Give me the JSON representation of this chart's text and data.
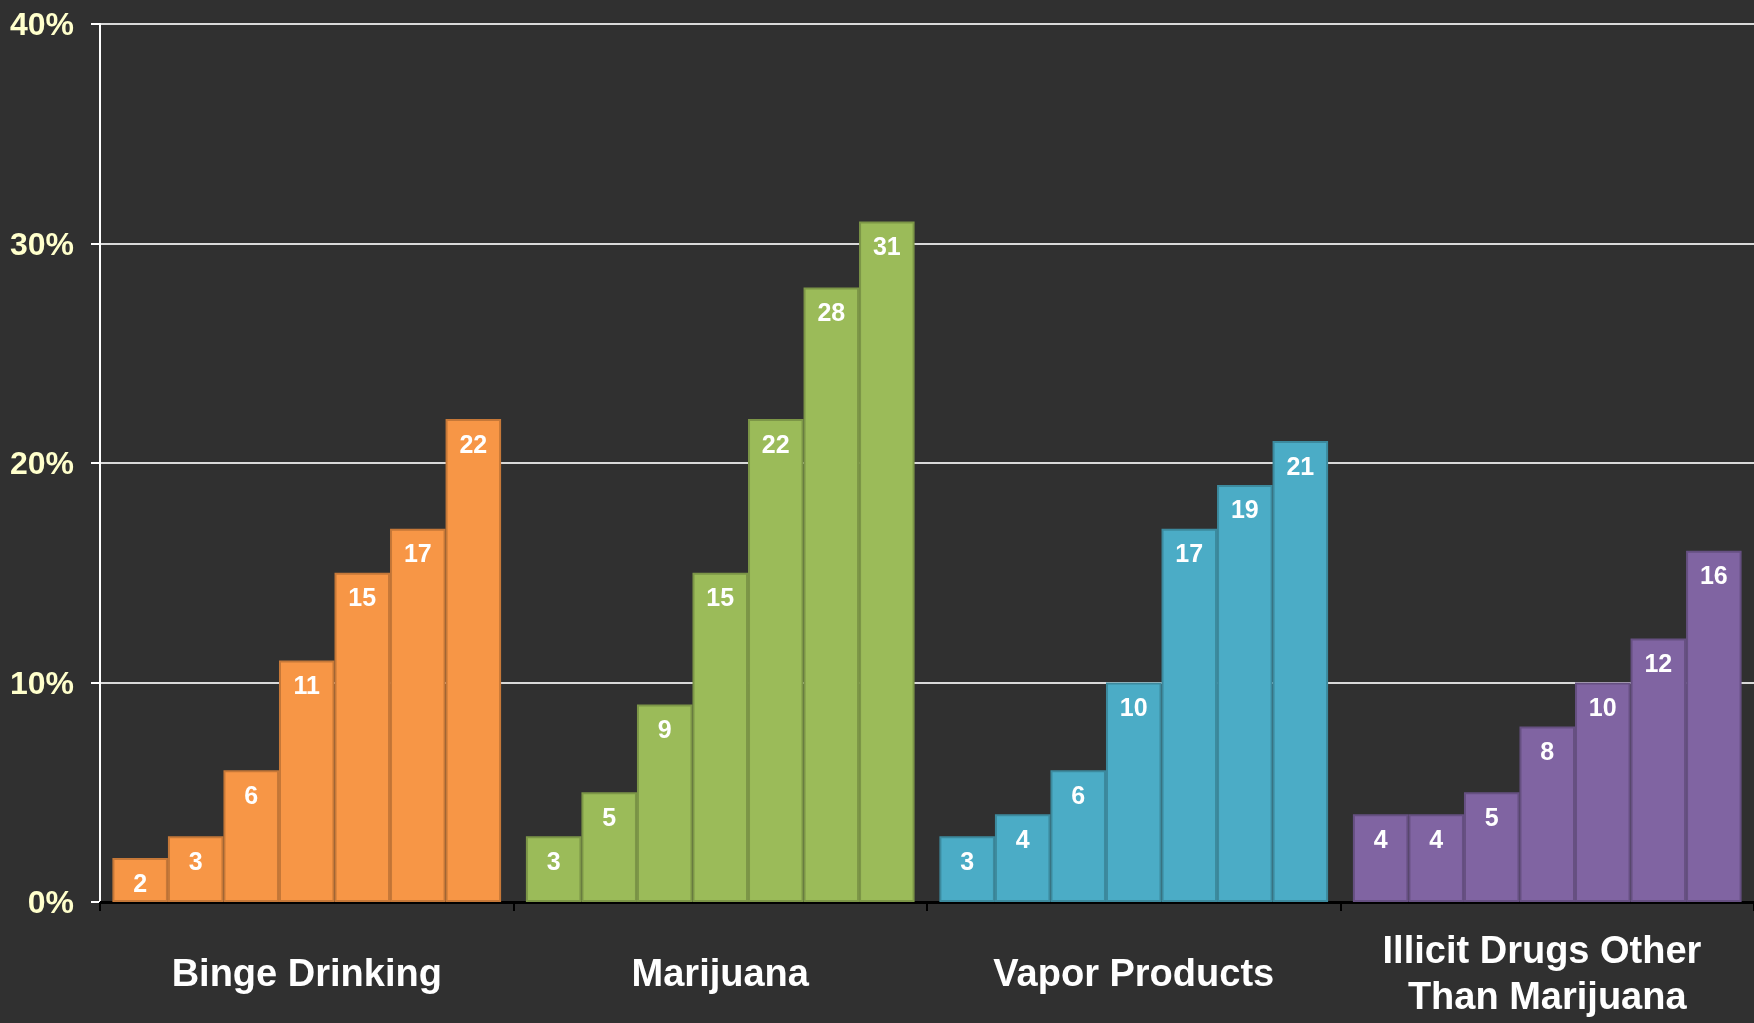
{
  "chart_data": {
    "type": "bar",
    "categories": [
      "Binge Drinking",
      "Marijuana",
      "Vapor Products",
      "Illicit Drugs Other Than Marijuana"
    ],
    "series": [
      {
        "colors": [
          "#f79646",
          "#9bbb59",
          "#4bacc6",
          "#8064a2"
        ],
        "values": [
          2,
          3,
          3,
          4
        ]
      },
      {
        "colors": [
          "#f79646",
          "#9bbb59",
          "#4bacc6",
          "#8064a2"
        ],
        "values": [
          3,
          5,
          4,
          4
        ]
      },
      {
        "colors": [
          "#f79646",
          "#9bbb59",
          "#4bacc6",
          "#8064a2"
        ],
        "values": [
          6,
          9,
          6,
          5
        ]
      },
      {
        "colors": [
          "#f79646",
          "#9bbb59",
          "#4bacc6",
          "#8064a2"
        ],
        "values": [
          11,
          15,
          10,
          8
        ]
      },
      {
        "colors": [
          "#f79646",
          "#9bbb59",
          "#4bacc6",
          "#8064a2"
        ],
        "values": [
          15,
          22,
          17,
          10
        ]
      },
      {
        "colors": [
          "#f79646",
          "#9bbb59",
          "#4bacc6",
          "#8064a2"
        ],
        "values": [
          17,
          28,
          19,
          12
        ]
      },
      {
        "colors": [
          "#f79646",
          "#9bbb59",
          "#4bacc6",
          "#8064a2"
        ],
        "values": [
          22,
          31,
          21,
          16
        ]
      }
    ],
    "ylim": [
      0,
      40
    ],
    "yticks": [
      {
        "value": 0,
        "label": "0%"
      },
      {
        "value": 10,
        "label": "10%"
      },
      {
        "value": 20,
        "label": "20%"
      },
      {
        "value": 30,
        "label": "30%"
      },
      {
        "value": 40,
        "label": "40%"
      }
    ],
    "grid": "y",
    "data_labels": true
  }
}
